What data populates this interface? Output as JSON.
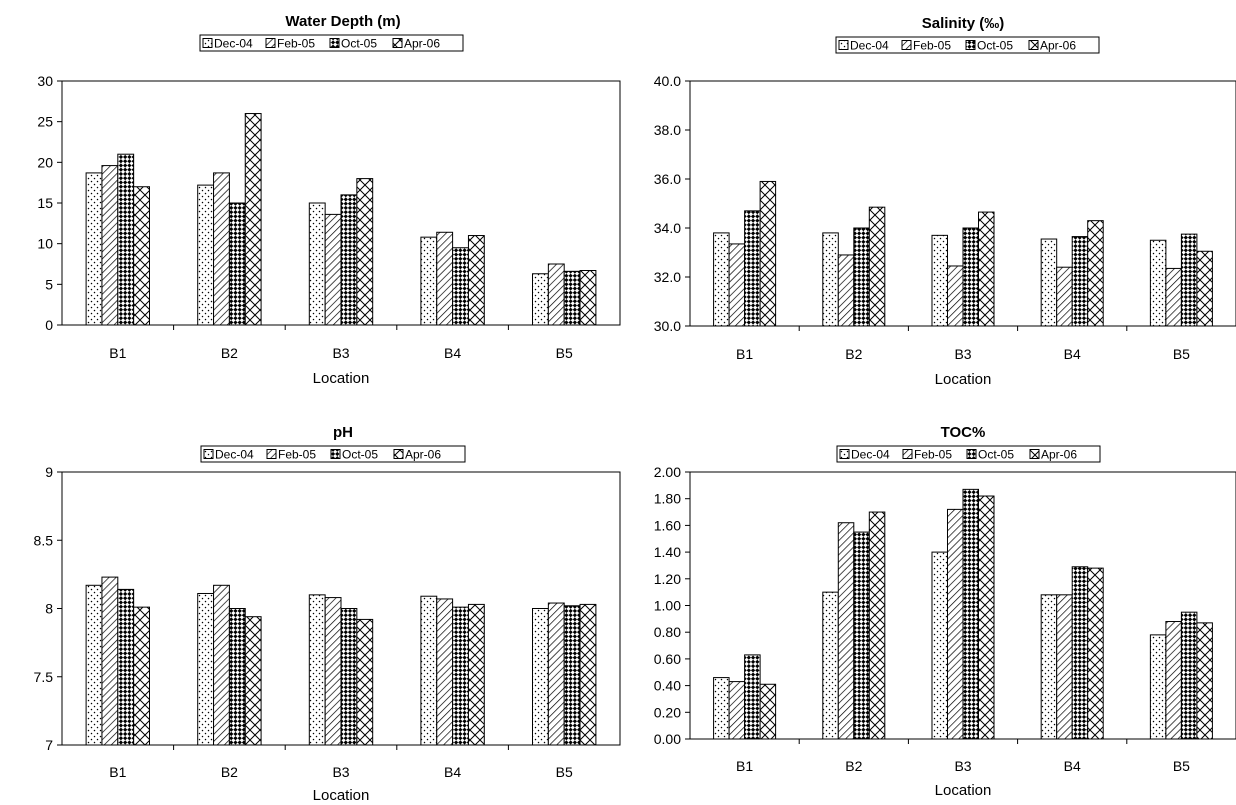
{
  "chart_data": [
    {
      "type": "bar",
      "title": "Water Depth (m)",
      "xlabel": "Location",
      "ylabel": "",
      "categories": [
        "B1",
        "B2",
        "B3",
        "B4",
        "B5"
      ],
      "series": [
        {
          "name": "Dec-04",
          "values": [
            18.7,
            17.2,
            15.0,
            10.8,
            6.3
          ]
        },
        {
          "name": "Feb-05",
          "values": [
            19.6,
            18.7,
            13.6,
            11.4,
            7.5
          ]
        },
        {
          "name": "Oct-05",
          "values": [
            21.0,
            15.0,
            16.0,
            9.5,
            6.6
          ]
        },
        {
          "name": "Apr-06",
          "values": [
            17.0,
            26.0,
            18.0,
            11.0,
            6.7
          ]
        }
      ],
      "ylim": [
        0,
        30
      ],
      "yticks": [
        "0",
        "5",
        "10",
        "15",
        "20",
        "25",
        "30"
      ],
      "legend_position": "top",
      "grid": false
    },
    {
      "type": "bar",
      "title": "Salinity (‰)",
      "xlabel": "Location",
      "ylabel": "",
      "categories": [
        "B1",
        "B2",
        "B3",
        "B4",
        "B5"
      ],
      "series": [
        {
          "name": "Dec-04",
          "values": [
            33.8,
            33.8,
            33.7,
            33.55,
            33.5
          ]
        },
        {
          "name": "Feb-05",
          "values": [
            33.35,
            32.9,
            32.45,
            32.4,
            32.35
          ]
        },
        {
          "name": "Oct-05",
          "values": [
            34.7,
            34.0,
            34.0,
            33.65,
            33.75
          ]
        },
        {
          "name": "Apr-06",
          "values": [
            35.9,
            34.85,
            34.65,
            34.3,
            33.05
          ]
        }
      ],
      "ylim": [
        30,
        40
      ],
      "yticks": [
        "30.0",
        "32.0",
        "34.0",
        "36.0",
        "38.0",
        "40.0"
      ],
      "legend_position": "top",
      "grid": false
    },
    {
      "type": "bar",
      "title": "pH",
      "xlabel": "Location",
      "ylabel": "",
      "categories": [
        "B1",
        "B2",
        "B3",
        "B4",
        "B5"
      ],
      "series": [
        {
          "name": "Dec-04",
          "values": [
            8.17,
            8.11,
            8.1,
            8.09,
            8.0
          ]
        },
        {
          "name": "Feb-05",
          "values": [
            8.23,
            8.17,
            8.08,
            8.07,
            8.04
          ]
        },
        {
          "name": "Oct-05",
          "values": [
            8.14,
            8.0,
            8.0,
            8.01,
            8.02
          ]
        },
        {
          "name": "Apr-06",
          "values": [
            8.01,
            7.94,
            7.92,
            8.03,
            8.03
          ]
        }
      ],
      "ylim": [
        7,
        9
      ],
      "yticks": [
        "7",
        "7.5",
        "8",
        "8.5",
        "9"
      ],
      "legend_position": "top",
      "grid": false
    },
    {
      "type": "bar",
      "title": "TOC%",
      "xlabel": "Location",
      "ylabel": "",
      "categories": [
        "B1",
        "B2",
        "B3",
        "B4",
        "B5"
      ],
      "series": [
        {
          "name": "Dec-04",
          "values": [
            0.46,
            1.1,
            1.4,
            1.08,
            0.78
          ]
        },
        {
          "name": "Feb-05",
          "values": [
            0.43,
            1.62,
            1.72,
            1.08,
            0.88
          ]
        },
        {
          "name": "Oct-05",
          "values": [
            0.63,
            1.55,
            1.87,
            1.29,
            0.95
          ]
        },
        {
          "name": "Apr-06",
          "values": [
            0.41,
            1.7,
            1.82,
            1.28,
            0.87
          ]
        }
      ],
      "ylim": [
        0,
        2
      ],
      "yticks": [
        "0.00",
        "0.20",
        "0.40",
        "0.60",
        "0.80",
        "1.00",
        "1.20",
        "1.40",
        "1.60",
        "1.80",
        "2.00"
      ],
      "legend_position": "top",
      "grid": false
    }
  ]
}
